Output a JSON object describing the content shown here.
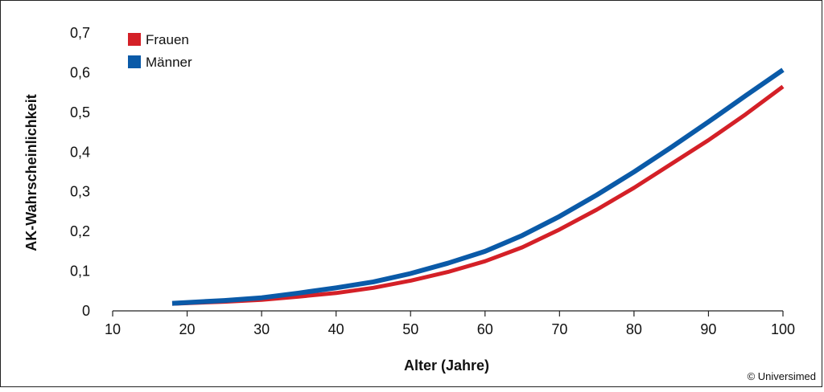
{
  "chart_data": {
    "type": "line",
    "xlabel": "Alter (Jahre)",
    "ylabel": "AK-Wahrscheinlichkeit",
    "xlim": [
      10,
      100
    ],
    "ylim": [
      0,
      0.7
    ],
    "xticks": [
      10,
      20,
      30,
      40,
      50,
      60,
      70,
      80,
      90,
      100
    ],
    "xtick_labels": [
      "10",
      "20",
      "30",
      "40",
      "50",
      "60",
      "70",
      "80",
      "90",
      "100"
    ],
    "yticks": [
      0,
      0.1,
      0.2,
      0.3,
      0.4,
      0.5,
      0.6,
      0.7
    ],
    "ytick_labels": [
      "0",
      "0,1",
      "0,2",
      "0,3",
      "0,4",
      "0,5",
      "0,6",
      "0,7"
    ],
    "grid": false,
    "legend_position": "top-left",
    "series": [
      {
        "name": "Frauen",
        "color": "#d42027",
        "x": [
          18,
          25,
          30,
          35,
          40,
          45,
          50,
          55,
          60,
          65,
          70,
          75,
          80,
          85,
          90,
          95,
          100
        ],
        "y": [
          0.018,
          0.023,
          0.028,
          0.036,
          0.045,
          0.058,
          0.076,
          0.098,
          0.125,
          0.16,
          0.205,
          0.255,
          0.31,
          0.37,
          0.43,
          0.495,
          0.565
        ]
      },
      {
        "name": "Männer",
        "color": "#0a5aa8",
        "x": [
          18,
          25,
          30,
          35,
          40,
          45,
          50,
          55,
          60,
          65,
          70,
          75,
          80,
          85,
          90,
          95,
          100
        ],
        "y": [
          0.019,
          0.026,
          0.033,
          0.045,
          0.058,
          0.073,
          0.094,
          0.12,
          0.15,
          0.19,
          0.238,
          0.292,
          0.35,
          0.412,
          0.476,
          0.542,
          0.607
        ]
      }
    ]
  },
  "credit": "© Universimed"
}
